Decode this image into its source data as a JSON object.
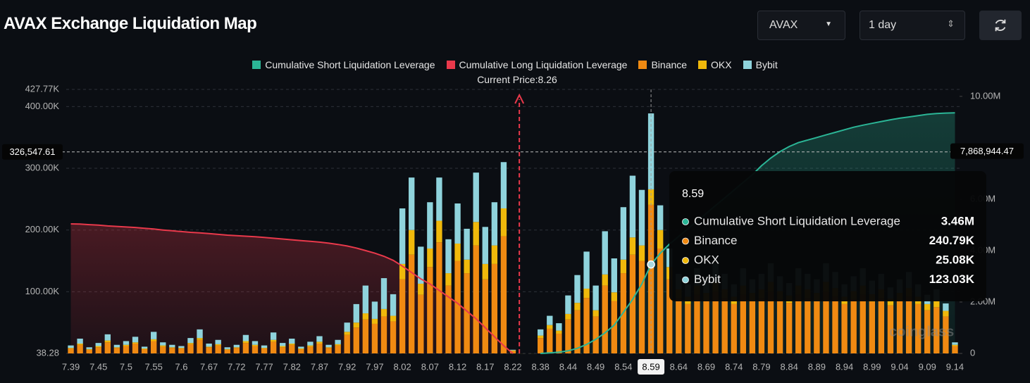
{
  "header": {
    "title": "AVAX Exchange Liquidation Map",
    "symbol": "AVAX",
    "interval": "1 day"
  },
  "chart_data": {
    "type": "bar",
    "current_price_label": "Current Price:8.26",
    "watermark": "coinglass",
    "categories": [
      "7.39",
      null,
      null,
      "7.45",
      null,
      null,
      "7.5",
      null,
      null,
      "7.55",
      null,
      null,
      "7.6",
      null,
      null,
      "7.67",
      null,
      null,
      "7.72",
      null,
      null,
      "7.77",
      null,
      null,
      "7.82",
      null,
      null,
      "7.87",
      null,
      null,
      "7.92",
      null,
      null,
      "7.97",
      null,
      null,
      "8.02",
      null,
      null,
      "8.07",
      null,
      null,
      "8.12",
      null,
      null,
      "8.17",
      null,
      null,
      "8.22",
      null,
      null,
      "8.38",
      null,
      null,
      "8.44",
      null,
      null,
      "8.49",
      null,
      null,
      "8.54",
      null,
      null,
      "8.59",
      null,
      null,
      "8.64",
      null,
      null,
      "8.69",
      null,
      null,
      "8.74",
      null,
      null,
      "8.79",
      null,
      null,
      "8.84",
      null,
      null,
      "8.89",
      null,
      null,
      "8.94",
      null,
      null,
      "8.99",
      null,
      null,
      "9.04",
      null,
      null,
      "9.09",
      null,
      null,
      "9.14"
    ],
    "ylim": [
      38.28,
      427770
    ],
    "yticks": [
      38.28,
      {
        "value": 100000,
        "label": "100.00K"
      },
      {
        "value": 200000,
        "label": "200.00K"
      },
      {
        "value": 300000,
        "label": "300.00K"
      },
      {
        "value": 400000,
        "label": "400.00K"
      },
      {
        "value": 427770,
        "label": "427.77K"
      }
    ],
    "y2lim": [
      0,
      10270000
    ],
    "y2ticks": [
      0,
      {
        "value": 2000000,
        "label": "2.00M"
      },
      {
        "value": 4000000,
        "label": "4.00M"
      },
      {
        "value": 6000000,
        "label": "6.00M"
      },
      {
        "value": 8000000,
        "label": "8.00M"
      },
      {
        "value": 10000000,
        "label": "10.00M"
      }
    ],
    "grid": true,
    "series": [
      {
        "name": "Cumulative Short Liquidation Leverage",
        "type": "area",
        "axis": "y2",
        "color": "#2bb596",
        "values": [
          null,
          null,
          null,
          null,
          null,
          null,
          null,
          null,
          null,
          null,
          null,
          null,
          null,
          null,
          null,
          null,
          null,
          null,
          null,
          null,
          null,
          null,
          null,
          null,
          null,
          null,
          null,
          null,
          null,
          null,
          null,
          null,
          null,
          null,
          null,
          null,
          null,
          null,
          null,
          null,
          null,
          null,
          null,
          null,
          null,
          null,
          null,
          null,
          null,
          null,
          null,
          0,
          20000,
          50000,
          100000,
          200000,
          350000,
          550000,
          800000,
          1100000,
          1600000,
          2100000,
          2700000,
          3460000,
          3900000,
          4250000,
          4550000,
          4850000,
          5150000,
          5450000,
          5750000,
          6050000,
          6350000,
          6650000,
          6950000,
          7300000,
          7600000,
          7850000,
          8050000,
          8200000,
          8300000,
          8400000,
          8500000,
          8600000,
          8700000,
          8800000,
          8880000,
          8950000,
          9020000,
          9090000,
          9150000,
          9200000,
          9250000,
          9300000,
          9330000,
          9350000,
          9360000
        ]
      },
      {
        "name": "Cumulative Long Liquidation Leverage",
        "type": "area",
        "axis": "y2",
        "color": "#e9394b",
        "values": [
          5040000,
          5030000,
          5010000,
          4990000,
          4960000,
          4940000,
          4920000,
          4900000,
          4870000,
          4840000,
          4800000,
          4770000,
          4740000,
          4710000,
          4690000,
          4660000,
          4630000,
          4600000,
          4580000,
          4560000,
          4540000,
          4510000,
          4480000,
          4450000,
          4420000,
          4390000,
          4360000,
          4330000,
          4290000,
          4240000,
          4180000,
          4100000,
          4000000,
          3900000,
          3780000,
          3620000,
          3400000,
          3150000,
          2900000,
          2700000,
          2450000,
          2200000,
          1950000,
          1650000,
          1350000,
          1000000,
          650000,
          300000,
          0,
          null,
          null,
          null,
          null,
          null,
          null,
          null,
          null,
          null,
          null,
          null,
          null,
          null,
          null,
          null,
          null,
          null,
          null,
          null,
          null,
          null,
          null,
          null,
          null,
          null,
          null,
          null,
          null,
          null,
          null,
          null,
          null,
          null,
          null,
          null,
          null,
          null,
          null,
          null,
          null,
          null,
          null,
          null,
          null,
          null,
          null,
          null,
          null
        ]
      },
      {
        "name": "Binance",
        "type": "bar",
        "color": "#f08a12",
        "values": [
          8000,
          14000,
          6000,
          10000,
          18000,
          9000,
          12000,
          16000,
          7000,
          20000,
          11000,
          9000,
          8000,
          15000,
          22000,
          10000,
          13000,
          6000,
          9000,
          17000,
          12000,
          8000,
          19000,
          10000,
          14000,
          7000,
          11000,
          16000,
          9000,
          13000,
          30000,
          42000,
          55000,
          48000,
          60000,
          52000,
          120000,
          160000,
          95000,
          140000,
          180000,
          110000,
          150000,
          130000,
          175000,
          120000,
          145000,
          190000,
          4000,
          0,
          0,
          25000,
          40000,
          32000,
          55000,
          70000,
          90000,
          60000,
          110000,
          85000,
          130000,
          160000,
          150000,
          240790,
          170000,
          120000,
          90000,
          80000,
          95000,
          85000,
          100000,
          90000,
          80000,
          95000,
          85000,
          90000,
          100000,
          88000,
          82000,
          95000,
          90000,
          85000,
          100000,
          92000,
          80000,
          88000,
          95000,
          84000,
          90000,
          78000,
          85000,
          92000,
          80000,
          70000,
          75000,
          60000,
          12000
        ]
      },
      {
        "name": "OKX",
        "type": "bar",
        "color": "#f0b90b",
        "values": [
          1000,
          2000,
          1000,
          2000,
          3000,
          1000,
          2000,
          2000,
          1000,
          3000,
          2000,
          1000,
          1000,
          2000,
          3000,
          1000,
          2000,
          1000,
          1000,
          3000,
          2000,
          1000,
          3000,
          2000,
          2000,
          1000,
          2000,
          3000,
          1000,
          2000,
          5000,
          8000,
          10000,
          8000,
          12000,
          9000,
          25000,
          40000,
          18000,
          30000,
          35000,
          20000,
          28000,
          22000,
          38000,
          25000,
          30000,
          45000,
          1000,
          0,
          0,
          4000,
          6000,
          5000,
          9000,
          12000,
          15000,
          10000,
          18000,
          14000,
          22000,
          28000,
          25000,
          25080,
          30000,
          20000,
          14000,
          12000,
          15000,
          13000,
          16000,
          14000,
          12000,
          15000,
          13000,
          14000,
          16000,
          13000,
          12000,
          15000,
          14000,
          13000,
          16000,
          14000,
          12000,
          13000,
          15000,
          12000,
          14000,
          11000,
          13000,
          14000,
          12000,
          10000,
          11000,
          9000,
          2000
        ]
      },
      {
        "name": "Bybit",
        "type": "bar",
        "color": "#8fd3dc",
        "values": [
          4000,
          8000,
          3000,
          5000,
          10000,
          4000,
          6000,
          9000,
          3000,
          12000,
          5000,
          4000,
          3000,
          8000,
          14000,
          5000,
          7000,
          3000,
          4000,
          10000,
          6000,
          4000,
          12000,
          5000,
          8000,
          3000,
          6000,
          9000,
          4000,
          7000,
          15000,
          30000,
          45000,
          28000,
          50000,
          35000,
          90000,
          85000,
          60000,
          75000,
          70000,
          55000,
          65000,
          50000,
          80000,
          60000,
          70000,
          75000,
          1000,
          0,
          0,
          10000,
          15000,
          12000,
          30000,
          45000,
          60000,
          40000,
          70000,
          55000,
          85000,
          100000,
          90000,
          123030,
          40000,
          30000,
          25000,
          20000,
          28000,
          22000,
          30000,
          25000,
          20000,
          28000,
          22000,
          25000,
          30000,
          24000,
          20000,
          28000,
          25000,
          22000,
          30000,
          26000,
          20000,
          24000,
          28000,
          22000,
          25000,
          18000,
          22000,
          26000,
          20000,
          15000,
          18000,
          12000,
          4000
        ]
      }
    ],
    "crosshair": {
      "y": {
        "value": 326547.61,
        "label": "326,547.61"
      },
      "y2": {
        "value": 7868944.47,
        "label": "7,868,944.47"
      }
    },
    "tooltip": {
      "title": "8.59",
      "rows": [
        {
          "name": "Cumulative Short Liquidation Leverage",
          "color": "#2bb596",
          "value": "3.46M"
        },
        {
          "name": "Binance",
          "color": "#f08a12",
          "value": "240.79K"
        },
        {
          "name": "OKX",
          "color": "#f0b90b",
          "value": "25.08K"
        },
        {
          "name": "Bybit",
          "color": "#8fd3dc",
          "value": "123.03K"
        }
      ]
    }
  }
}
